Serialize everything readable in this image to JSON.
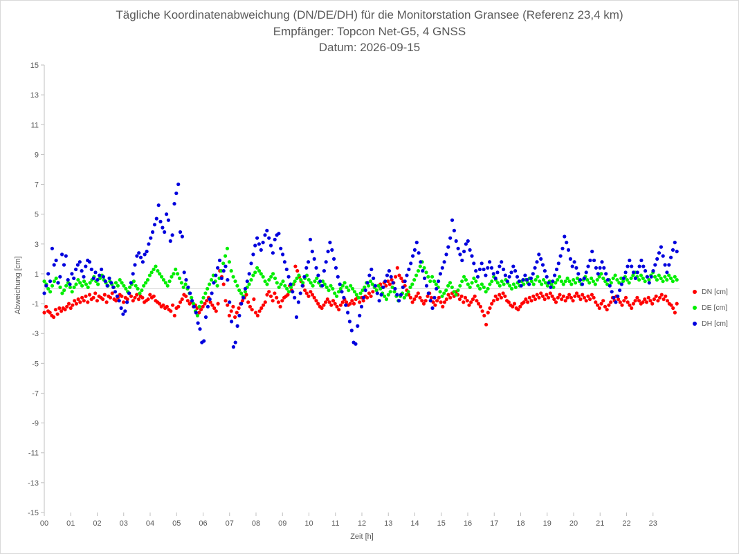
{
  "chart_data": {
    "type": "scatter",
    "title": "Tägliche Koordinatenabweichung (DN/DE/DH) für die Monitorstation Gransee (Referenz 23,4 km)",
    "subtitle": "Empfänger: Topcon Net-G5, 4 GNSS",
    "date_line": "Datum: 2026-09-15",
    "xlabel": "Zeit [h]",
    "ylabel": "Abweichung [cm]",
    "xlim": [
      0,
      24
    ],
    "ylim": [
      -15,
      15
    ],
    "x_ticks": [
      "00",
      "01",
      "02",
      "03",
      "04",
      "05",
      "06",
      "07",
      "08",
      "09",
      "10",
      "11",
      "12",
      "13",
      "14",
      "15",
      "16",
      "17",
      "18",
      "19",
      "20",
      "21",
      "22",
      "23"
    ],
    "y_ticks": [
      15,
      13,
      11,
      9,
      7,
      5,
      3,
      1,
      -1,
      -3,
      -5,
      -7,
      -9,
      -11,
      -13,
      -15
    ],
    "grid": false,
    "legend_position": "right",
    "x_step_h": 0.0333,
    "series": [
      {
        "name": "DN [cm]",
        "color": "#ff0000",
        "values": [
          -1.6,
          -1.2,
          -1.5,
          -1.6,
          -1.8,
          -1.9,
          -1.4,
          -1.7,
          -1.3,
          -1.5,
          -1.3,
          -1.4,
          -1.2,
          -1.0,
          -1.3,
          -1.1,
          -0.8,
          -1.0,
          -0.7,
          -0.9,
          -0.6,
          -0.8,
          -0.5,
          -0.9,
          -0.4,
          -0.7,
          -0.6,
          -0.3,
          -0.8,
          -0.5,
          -0.6,
          -0.7,
          -0.4,
          -0.9,
          -0.5,
          -0.6,
          -0.3,
          -0.7,
          -0.8,
          -0.6,
          -0.4,
          -0.5,
          -0.9,
          -0.6,
          -0.7,
          -0.3,
          -0.5,
          -0.8,
          -0.6,
          -0.4,
          -0.7,
          -0.5,
          -0.6,
          -0.9,
          -0.8,
          -0.7,
          -0.4,
          -0.6,
          -0.5,
          -0.8,
          -0.9,
          -1.0,
          -1.2,
          -1.1,
          -1.3,
          -1.2,
          -1.4,
          -1.5,
          -1.1,
          -1.8,
          -1.3,
          -1.2,
          -0.9,
          -0.7,
          -0.4,
          -0.5,
          -0.8,
          -1.0,
          -0.9,
          -1.2,
          -1.1,
          -1.3,
          -1.6,
          -1.4,
          -1.2,
          -1.0,
          -0.8,
          -0.6,
          -0.9,
          -1.1,
          -1.3,
          -1.5,
          -1.0,
          1.2,
          0.8,
          0.3,
          -0.8,
          -1.1,
          -1.8,
          -1.5,
          -1.2,
          -1.9,
          -1.6,
          -1.3,
          -1.0,
          -0.8,
          -0.6,
          -0.4,
          -0.9,
          -1.2,
          -1.4,
          -0.7,
          -1.6,
          -1.8,
          -1.5,
          -1.3,
          -1.1,
          -0.9,
          -0.4,
          -0.2,
          -0.5,
          -0.8,
          -0.3,
          -0.6,
          -0.9,
          -1.2,
          -0.8,
          -0.6,
          -0.5,
          -0.4,
          0.2,
          -0.1,
          0.3,
          1.5,
          1.2,
          0.8,
          0.5,
          0.2,
          -0.1,
          -0.3,
          -0.5,
          -0.2,
          -0.4,
          -0.6,
          -0.8,
          -1.0,
          -1.2,
          -1.3,
          -1.1,
          -0.9,
          -0.7,
          -0.9,
          -1.1,
          -0.8,
          -1.0,
          -1.2,
          -1.4,
          -1.1,
          -0.9,
          -0.7,
          -0.9,
          -1.1,
          -1.0,
          -0.8,
          -1.0,
          -0.7,
          -0.6,
          -0.9,
          -0.6,
          -0.8,
          -0.5,
          -0.6,
          -0.3,
          -0.5,
          -0.2,
          0.1,
          -0.1,
          0.2,
          0.3,
          0.1,
          0.4,
          0.2,
          0.5,
          0.3,
          0.6,
          0.4,
          0.8,
          1.4,
          0.9,
          0.7,
          0.5,
          0.2,
          -0.1,
          -0.4,
          -0.6,
          -0.9,
          -0.7,
          -0.5,
          -0.3,
          -0.6,
          -0.8,
          -1.0,
          -0.8,
          -0.5,
          -0.3,
          -0.6,
          -0.9,
          -1.1,
          -0.8,
          -0.6,
          -0.9,
          -1.2,
          -0.9,
          -0.7,
          -0.4,
          -0.6,
          -0.3,
          -0.5,
          -0.2,
          -0.4,
          -0.7,
          -0.5,
          -0.9,
          -0.6,
          -0.8,
          -1.1,
          -0.9,
          -0.7,
          -0.5,
          -0.8,
          -1.0,
          -1.2,
          -1.5,
          -1.8,
          -2.4,
          -1.6,
          -1.3,
          -1.0,
          -0.8,
          -0.5,
          -0.7,
          -0.4,
          -0.6,
          -0.3,
          -0.5,
          -0.8,
          -0.9,
          -1.1,
          -1.2,
          -1.0,
          -1.3,
          -1.4,
          -1.2,
          -1.0,
          -0.9,
          -0.7,
          -0.9,
          -0.6,
          -0.8,
          -0.5,
          -0.7,
          -0.4,
          -0.6,
          -0.3,
          -0.5,
          -0.7,
          -0.4,
          -0.6,
          -0.3,
          -0.5,
          -0.7,
          -0.9,
          -0.6,
          -0.4,
          -0.7,
          -0.5,
          -0.8,
          -0.6,
          -0.4,
          -0.6,
          -0.8,
          -0.5,
          -0.3,
          -0.5,
          -0.7,
          -0.4,
          -0.6,
          -0.8,
          -0.5,
          -0.7,
          -0.4,
          -0.6,
          -0.9,
          -1.1,
          -1.3,
          -1.0,
          -0.8,
          -1.2,
          -1.4,
          -1.1,
          -0.9,
          -0.6,
          -0.8,
          -0.5,
          -0.7,
          -0.9,
          -1.1,
          -0.8,
          -0.6,
          -0.9,
          -1.1,
          -1.3,
          -1.0,
          -0.8,
          -0.6,
          -0.8,
          -1.0,
          -0.9,
          -0.7,
          -0.9,
          -0.6,
          -0.8,
          -1.0,
          -0.7,
          -0.5,
          -0.8,
          -0.6,
          -0.4,
          -0.7,
          -0.5,
          -0.8,
          -1.0,
          -1.1,
          -1.3,
          -1.6,
          -1.0
        ],
        "x_start": 0.0
      },
      {
        "name": "DE [cm]",
        "color": "#00ee00",
        "values": [
          0.5,
          0.3,
          0.0,
          -0.2,
          0.2,
          0.5,
          0.7,
          0.4,
          0.1,
          -0.3,
          -0.1,
          0.2,
          0.4,
          0.1,
          -0.2,
          0.1,
          0.3,
          0.6,
          0.4,
          0.2,
          0.5,
          0.3,
          0.1,
          0.4,
          0.6,
          0.8,
          0.5,
          0.3,
          0.7,
          0.9,
          0.6,
          0.4,
          0.2,
          0.5,
          0.3,
          0.1,
          0.4,
          0.2,
          0.6,
          0.4,
          0.2,
          0.0,
          -0.2,
          0.1,
          0.3,
          0.5,
          0.2,
          0.0,
          -0.3,
          -0.1,
          0.2,
          0.4,
          0.6,
          0.9,
          1.1,
          1.3,
          1.5,
          1.2,
          1.0,
          0.8,
          0.6,
          0.4,
          0.2,
          0.5,
          0.8,
          1.0,
          1.3,
          1.0,
          0.7,
          0.4,
          0.1,
          0.3,
          0.0,
          -0.3,
          -0.6,
          -1.0,
          -1.5,
          -1.8,
          -1.2,
          -0.9,
          -0.6,
          -0.3,
          0.0,
          0.3,
          0.6,
          0.9,
          0.5,
          0.2,
          0.7,
          1.2,
          1.7,
          2.2,
          2.7,
          1.8,
          1.2,
          0.8,
          0.5,
          0.2,
          -0.1,
          -0.3,
          -0.5,
          -0.2,
          0.1,
          0.3,
          0.6,
          0.9,
          1.1,
          1.4,
          1.2,
          1.0,
          0.8,
          0.5,
          0.3,
          0.6,
          0.8,
          1.0,
          0.7,
          0.4,
          0.1,
          0.3,
          0.5,
          0.2,
          0.0,
          -0.2,
          0.1,
          0.3,
          0.5,
          0.7,
          0.9,
          0.6,
          0.4,
          0.7,
          0.9,
          0.6,
          0.4,
          0.2,
          0.5,
          0.7,
          0.4,
          0.2,
          0.5,
          0.3,
          0.1,
          -0.1,
          0.2,
          0.0,
          -0.3,
          -0.5,
          -0.2,
          0.0,
          0.2,
          0.4,
          0.1,
          -0.1,
          0.2,
          0.0,
          -0.2,
          -0.4,
          -0.6,
          -0.3,
          -0.1,
          0.1,
          0.4,
          0.2,
          0.5,
          0.3,
          0.1,
          -0.1,
          0.2,
          0.0,
          -0.3,
          -0.5,
          -0.7,
          -0.4,
          -0.2,
          0.1,
          -0.2,
          -0.5,
          -0.8,
          -0.5,
          -0.3,
          -0.6,
          -0.4,
          -0.2,
          0.1,
          0.3,
          0.6,
          0.9,
          1.2,
          1.5,
          1.8,
          1.4,
          1.1,
          0.8,
          0.5,
          0.8,
          0.5,
          0.3,
          0.1,
          -0.2,
          -0.5,
          -0.3,
          -0.1,
          0.2,
          0.4,
          0.1,
          -0.2,
          -0.4,
          -0.1,
          0.2,
          0.5,
          0.8,
          0.6,
          0.3,
          0.1,
          0.4,
          0.7,
          0.5,
          0.2,
          0.0,
          0.3,
          0.1,
          -0.2,
          0.0,
          0.3,
          0.5,
          0.8,
          0.6,
          0.4,
          0.2,
          0.5,
          0.3,
          0.6,
          0.4,
          0.2,
          0.0,
          0.3,
          0.1,
          0.4,
          0.2,
          0.5,
          0.3,
          0.6,
          0.4,
          0.7,
          0.5,
          0.3,
          0.6,
          0.8,
          0.5,
          0.3,
          0.6,
          0.4,
          0.2,
          0.5,
          0.3,
          0.1,
          0.4,
          0.6,
          0.8,
          0.5,
          0.3,
          0.5,
          0.7,
          0.5,
          0.3,
          0.6,
          0.4,
          0.7,
          0.5,
          0.3,
          0.6,
          0.8,
          0.6,
          0.4,
          0.7,
          0.5,
          0.3,
          0.6,
          0.8,
          1.0,
          0.7,
          0.5,
          0.3,
          0.6,
          0.4,
          0.7,
          0.9,
          0.6,
          0.4,
          0.7,
          0.5,
          0.8,
          0.6,
          0.4,
          0.7,
          0.9,
          1.1,
          0.8,
          0.6,
          0.9,
          0.7,
          0.5,
          0.8,
          0.6,
          0.9,
          1.1,
          0.8,
          0.6,
          0.9,
          0.7,
          0.5,
          0.8,
          0.6,
          0.9,
          0.7,
          0.5,
          0.8,
          0.6
        ]
      },
      {
        "name": "DH [cm]",
        "color": "#0000dd",
        "values": [
          -0.3,
          0.2,
          1.0,
          0.5,
          2.7,
          1.6,
          1.9,
          0.4,
          0.8,
          2.3,
          1.6,
          2.2,
          0.6,
          0.3,
          1.0,
          0.7,
          1.3,
          1.6,
          1.8,
          1.2,
          0.8,
          1.5,
          1.9,
          1.8,
          1.3,
          0.7,
          1.1,
          0.6,
          0.9,
          1.3,
          0.8,
          0.5,
          0.2,
          0.7,
          0.4,
          0.1,
          -0.2,
          -0.5,
          -0.8,
          -1.3,
          -1.7,
          -1.5,
          -0.9,
          -0.3,
          0.4,
          1.0,
          1.6,
          2.2,
          2.4,
          2.1,
          1.8,
          2.3,
          2.5,
          3.0,
          3.4,
          3.8,
          4.3,
          4.7,
          5.6,
          4.5,
          4.1,
          3.8,
          5.0,
          4.6,
          3.2,
          3.6,
          5.7,
          6.4,
          7.0,
          3.8,
          3.5,
          1.1,
          0.6,
          0.1,
          -0.3,
          -0.8,
          -1.2,
          -1.6,
          -2.3,
          -2.7,
          -3.6,
          -3.5,
          -1.9,
          -1.2,
          -0.7,
          -0.3,
          0.4,
          0.9,
          1.4,
          1.9,
          0.7,
          1.2,
          1.5,
          0.6,
          -0.9,
          -2.2,
          -3.9,
          -3.6,
          -2.5,
          -1.8,
          -1.0,
          -0.6,
          0.0,
          0.5,
          1.0,
          1.7,
          2.3,
          2.9,
          3.4,
          3.0,
          2.6,
          3.1,
          3.6,
          3.9,
          3.4,
          2.9,
          2.4,
          3.3,
          3.6,
          3.7,
          2.7,
          2.3,
          1.8,
          1.3,
          0.8,
          0.3,
          -0.2,
          -0.6,
          -1.9,
          -0.9,
          -0.3,
          0.2,
          0.8,
          1.4,
          1.8,
          3.3,
          2.5,
          2.0,
          1.4,
          0.9,
          0.5,
          0.2,
          1.2,
          1.8,
          2.5,
          3.1,
          2.6,
          2.0,
          1.4,
          0.8,
          0.3,
          -0.2,
          -0.6,
          -1.1,
          -1.6,
          -2.2,
          -2.8,
          -3.6,
          -3.7,
          -2.5,
          -1.8,
          -1.2,
          -0.6,
          -0.1,
          0.4,
          0.9,
          1.3,
          0.7,
          0.2,
          -0.3,
          -0.8,
          -0.4,
          0.1,
          0.5,
          0.9,
          1.2,
          0.8,
          0.4,
          0.0,
          -0.4,
          -0.8,
          -0.4,
          0.1,
          0.5,
          0.9,
          1.3,
          1.7,
          2.2,
          2.6,
          3.1,
          2.4,
          1.8,
          1.2,
          0.7,
          0.2,
          -0.3,
          -0.8,
          -1.3,
          -0.6,
          0.0,
          0.5,
          1.0,
          1.4,
          1.8,
          2.3,
          2.8,
          3.4,
          4.6,
          3.9,
          3.2,
          2.7,
          2.3,
          1.9,
          2.5,
          3.0,
          3.2,
          2.6,
          2.2,
          1.7,
          1.2,
          0.8,
          1.3,
          1.7,
          1.3,
          0.9,
          1.4,
          1.8,
          1.4,
          1.0,
          0.7,
          1.1,
          1.5,
          1.8,
          1.3,
          0.9,
          0.5,
          0.8,
          1.1,
          1.5,
          1.2,
          0.8,
          0.5,
          0.2,
          0.6,
          0.9,
          0.6,
          0.3,
          0.7,
          1.0,
          1.4,
          1.8,
          2.3,
          2.0,
          1.6,
          1.2,
          0.8,
          0.4,
          0.1,
          0.5,
          0.9,
          1.3,
          1.7,
          2.2,
          2.7,
          3.5,
          3.1,
          2.6,
          2.0,
          1.5,
          1.8,
          1.4,
          1.0,
          0.6,
          0.3,
          0.7,
          1.1,
          1.5,
          1.9,
          2.5,
          1.9,
          1.4,
          1.0,
          1.4,
          1.8,
          1.4,
          1.0,
          0.6,
          0.2,
          -0.2,
          -0.6,
          -0.9,
          -0.5,
          -0.1,
          0.3,
          0.7,
          1.1,
          1.5,
          1.9,
          1.5,
          1.1,
          0.7,
          1.1,
          1.5,
          1.9,
          1.5,
          1.2,
          0.8,
          0.4,
          0.8,
          1.2,
          1.6,
          2.0,
          2.4,
          2.8,
          2.2,
          1.6,
          1.1,
          1.6,
          2.1,
          2.6,
          3.1,
          2.5
        ]
      }
    ]
  }
}
